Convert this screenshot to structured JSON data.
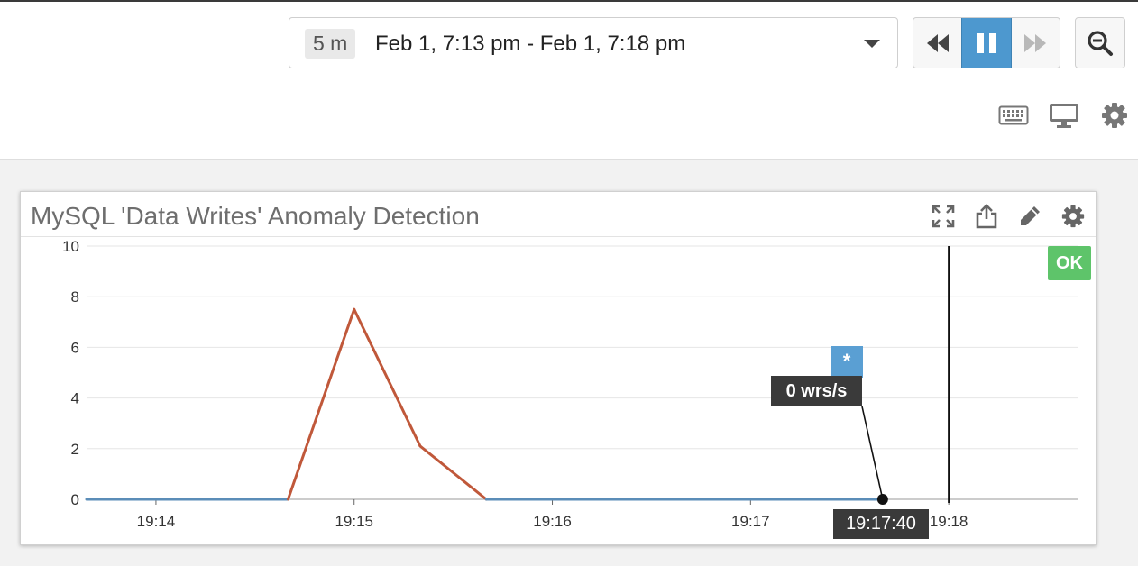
{
  "header": {
    "time_picker": {
      "duration": "5 m",
      "range": "Feb 1, 7:13 pm - Feb 1, 7:18 pm"
    },
    "playback": {
      "rewind_icon": "rewind-icon",
      "pause_icon": "pause-icon",
      "forward_icon": "fast-forward-icon"
    },
    "zoom_icon": "zoom-out-icon",
    "tools": [
      "keyboard-icon",
      "monitor-icon",
      "gear-icon"
    ]
  },
  "widget": {
    "title": "MySQL 'Data Writes' Anomaly Detection",
    "actions": [
      "expand-icon",
      "share-icon",
      "pencil-icon",
      "gear-icon"
    ],
    "status_badge": "OK",
    "marker_badge": "*",
    "value_label": "0 wrs/s",
    "time_label": "19:17:40",
    "colors": {
      "series": "#c0583a",
      "baseline": "#5b8db8",
      "ok": "#5ec46a",
      "marker": "#5a9fd3"
    }
  },
  "chart_data": {
    "type": "line",
    "ylim": [
      0,
      10
    ],
    "xlim": [
      "19:13:39",
      "19:18:39"
    ],
    "y_ticks": [
      "0",
      "2",
      "4",
      "6",
      "8",
      "10"
    ],
    "x_ticks": [
      "19:14",
      "19:15",
      "19:16",
      "19:17",
      "19:18"
    ],
    "series": [
      {
        "x": [
          "19:13:39",
          "19:14:40",
          "19:15:00",
          "19:15:20",
          "19:15:40",
          "19:17:40"
        ],
        "values": [
          0,
          0,
          7.5,
          2.1,
          0,
          0
        ]
      }
    ],
    "cursor_time": "19:18:00",
    "hover_point": {
      "x": "19:17:40",
      "y": 0
    }
  }
}
